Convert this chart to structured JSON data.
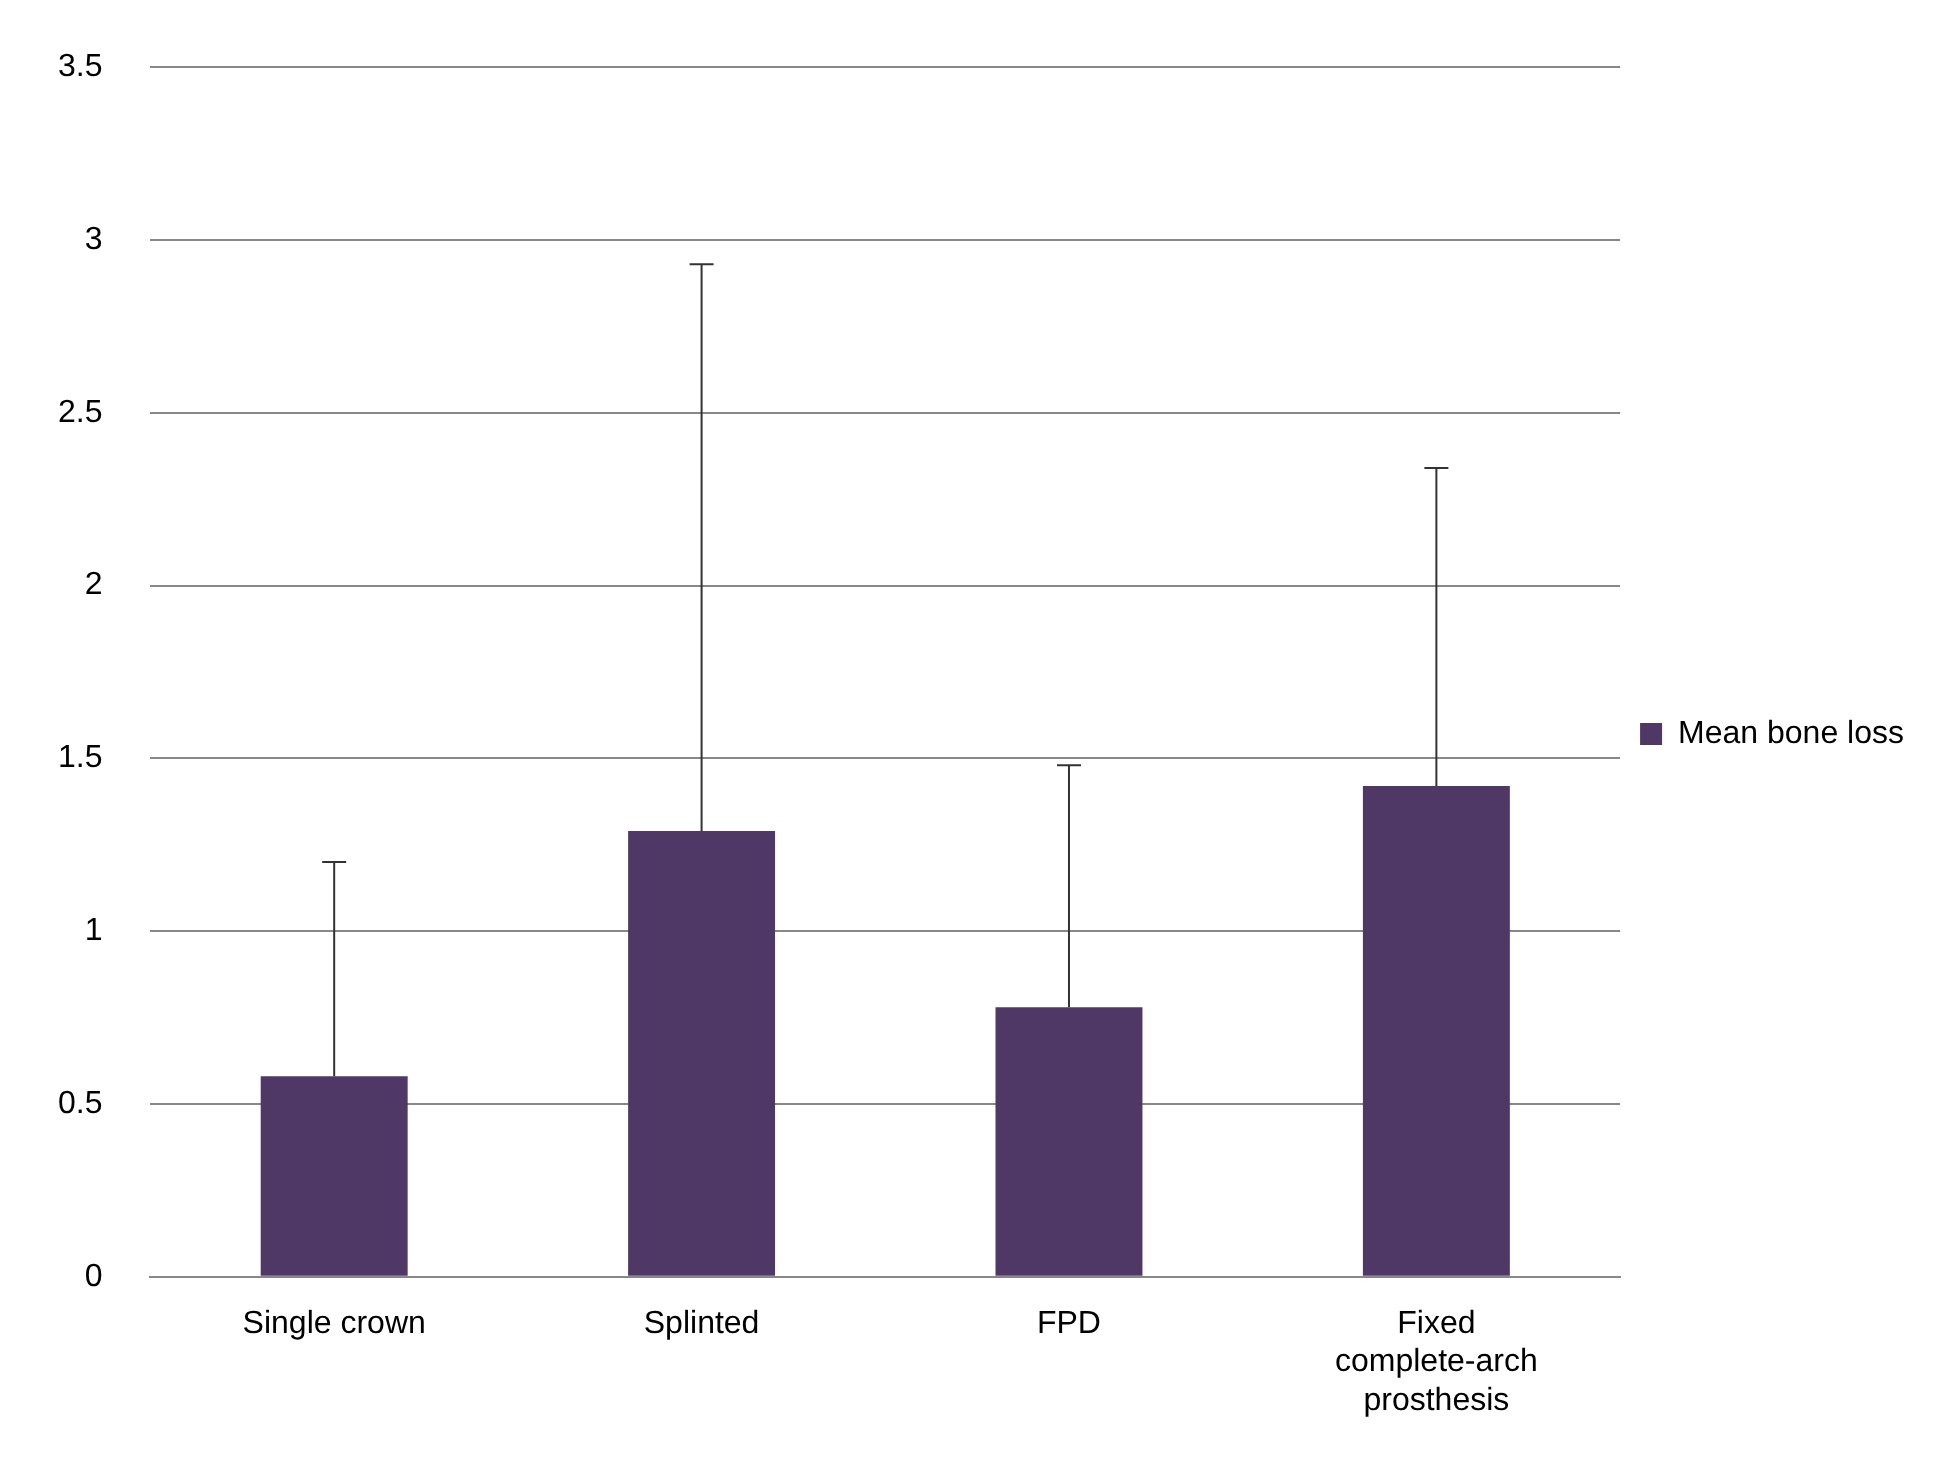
{
  "chart_data": {
    "type": "bar",
    "categories": [
      "Single crown",
      "Splinted",
      "FPD",
      "Fixed complete-arch prosthesis"
    ],
    "series": [
      {
        "name": "Mean bone loss",
        "color": "#4f3866",
        "values": [
          0.58,
          1.29,
          0.78,
          1.42
        ],
        "errors": [
          [
            0.58,
            1.2
          ],
          [
            1.29,
            2.93
          ],
          [
            0.78,
            1.48
          ],
          [
            1.42,
            2.34
          ]
        ]
      }
    ],
    "ylim": [
      0,
      3.5
    ],
    "yticks": [
      0,
      0.5,
      1,
      1.5,
      2,
      2.5,
      3,
      3.5
    ],
    "grid": "y",
    "legend": "right"
  }
}
